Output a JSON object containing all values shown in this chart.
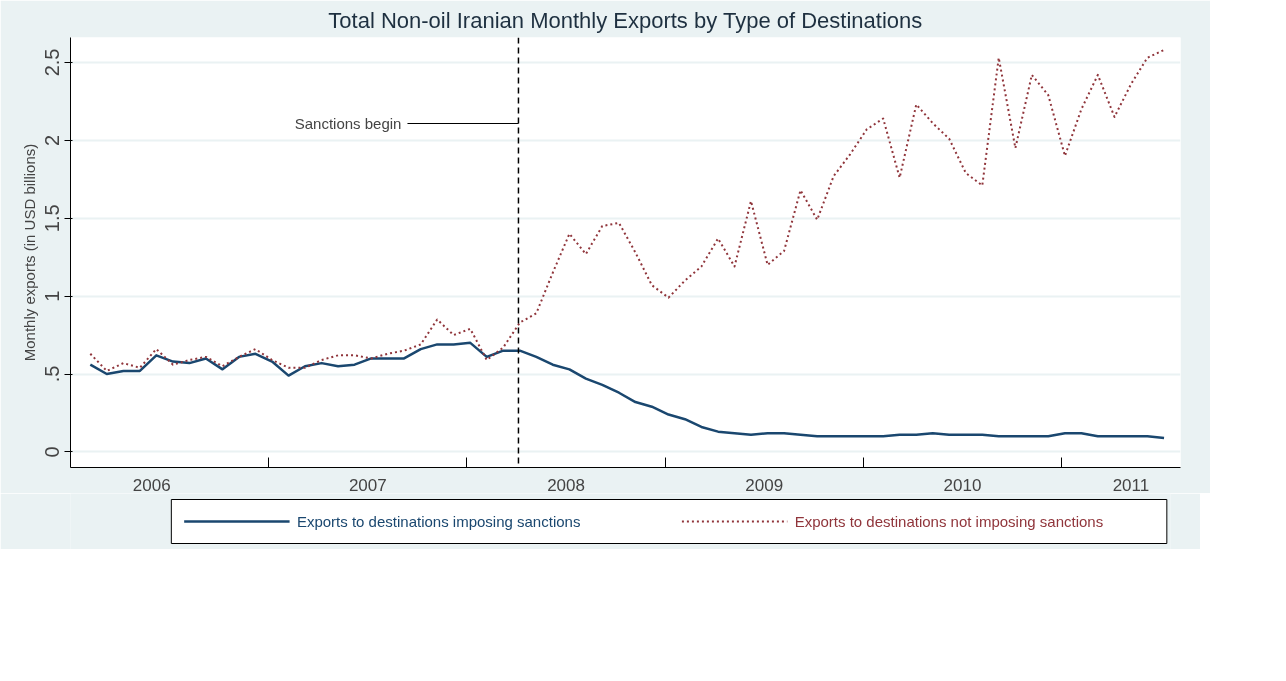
{
  "chart_data": {
    "type": "line",
    "title": "Total Non-oil Iranian Monthly Exports by Type of Destinations",
    "ylabel": "Monthly exports (in USD billions)",
    "x": [
      2006.1,
      2006.183,
      2006.267,
      2006.35,
      2006.433,
      2006.517,
      2006.6,
      2006.683,
      2006.767,
      2006.85,
      2006.933,
      2007.017,
      2007.1,
      2007.183,
      2007.267,
      2007.35,
      2007.433,
      2007.517,
      2007.6,
      2007.683,
      2007.767,
      2007.85,
      2007.933,
      2008.017,
      2008.1,
      2008.183,
      2008.267,
      2008.35,
      2008.433,
      2008.517,
      2008.6,
      2008.683,
      2008.767,
      2008.85,
      2008.933,
      2009.017,
      2009.1,
      2009.183,
      2009.267,
      2009.35,
      2009.433,
      2009.517,
      2009.6,
      2009.683,
      2009.767,
      2009.85,
      2009.933,
      2010.017,
      2010.1,
      2010.183,
      2010.267,
      2010.35,
      2010.433,
      2010.517,
      2010.6,
      2010.683,
      2010.767,
      2010.85,
      2010.933,
      2011.017,
      2011.1,
      2011.183,
      2011.267,
      2011.35,
      2011.433,
      2011.517
    ],
    "series": [
      {
        "name": "Exports to destinations imposing sanctions",
        "color": "#1a476f",
        "line_style": "solid",
        "values": [
          0.56,
          0.5,
          0.52,
          0.52,
          0.62,
          0.58,
          0.57,
          0.6,
          0.53,
          0.61,
          0.63,
          0.58,
          0.49,
          0.55,
          0.57,
          0.55,
          0.56,
          0.6,
          0.6,
          0.6,
          0.66,
          0.69,
          0.69,
          0.7,
          0.61,
          0.65,
          0.65,
          0.61,
          0.56,
          0.53,
          0.47,
          0.43,
          0.38,
          0.32,
          0.29,
          0.24,
          0.21,
          0.16,
          0.13,
          0.12,
          0.11,
          0.12,
          0.12,
          0.11,
          0.1,
          0.1,
          0.1,
          0.1,
          0.1,
          0.11,
          0.11,
          0.12,
          0.11,
          0.11,
          0.11,
          0.1,
          0.1,
          0.1,
          0.1,
          0.12,
          0.12,
          0.1,
          0.1,
          0.1,
          0.1,
          0.09
        ]
      },
      {
        "name": "Exports to destinations not imposing sanctions",
        "color": "#90353b",
        "line_style": "dotted",
        "values": [
          0.63,
          0.52,
          0.57,
          0.54,
          0.66,
          0.56,
          0.59,
          0.61,
          0.55,
          0.61,
          0.66,
          0.59,
          0.54,
          0.54,
          0.59,
          0.62,
          0.62,
          0.6,
          0.63,
          0.65,
          0.69,
          0.85,
          0.75,
          0.79,
          0.59,
          0.67,
          0.83,
          0.89,
          1.15,
          1.4,
          1.27,
          1.45,
          1.47,
          1.28,
          1.07,
          0.99,
          1.1,
          1.19,
          1.37,
          1.19,
          1.61,
          1.2,
          1.29,
          1.68,
          1.49,
          1.77,
          1.91,
          2.07,
          2.14,
          1.76,
          2.23,
          2.11,
          2.01,
          1.79,
          1.71,
          2.53,
          1.95,
          2.42,
          2.29,
          1.9,
          2.2,
          2.42,
          2.15,
          2.36,
          2.53,
          2.58
        ]
      }
    ],
    "xlim": [
      2006.0,
      2011.6
    ],
    "xticks": [
      {
        "value": 2006.41,
        "label": "2006"
      },
      {
        "value": 2007.0,
        "label": null
      },
      {
        "value": 2007.5,
        "label": "2007"
      },
      {
        "value": 2008.0,
        "label": null
      },
      {
        "value": 2008.5,
        "label": "2008"
      },
      {
        "value": 2009.0,
        "label": null
      },
      {
        "value": 2009.5,
        "label": "2009"
      },
      {
        "value": 2010.0,
        "label": null
      },
      {
        "value": 2010.5,
        "label": "2010"
      },
      {
        "value": 2011.0,
        "label": null
      },
      {
        "value": 2011.35,
        "label": "2011"
      }
    ],
    "ylim": [
      -0.1,
      2.66
    ],
    "yticks": [
      0,
      {
        "value": 0.5,
        "label": ".5"
      },
      1,
      1.5,
      2,
      2.5
    ],
    "ref_lines": [
      {
        "axis": "x",
        "value": 2008.26,
        "label": "Sanctions begin",
        "color": "#000000",
        "line_style": "dashed"
      }
    ],
    "grid": "y",
    "legend": "bottom"
  }
}
